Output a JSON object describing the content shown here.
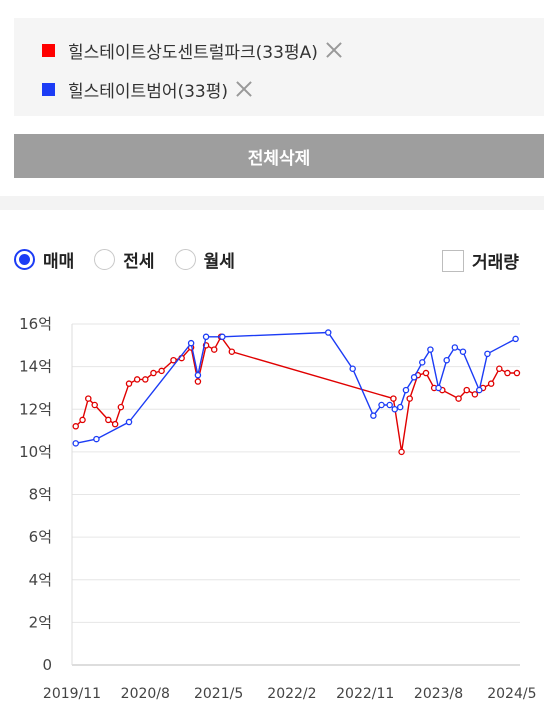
{
  "compare": {
    "items": [
      {
        "label": "힐스테이트상도센트럴파크(33평A)",
        "color": "#ff0000",
        "icon": "close-icon"
      },
      {
        "label": "힐스테이트범어(33평)",
        "color": "#1c3cf5",
        "icon": "close-icon"
      }
    ],
    "delete_all_label": "전체삭제"
  },
  "filters": {
    "options": [
      {
        "label": "매매",
        "selected": true
      },
      {
        "label": "전세",
        "selected": false
      },
      {
        "label": "월세",
        "selected": false
      }
    ],
    "volume_label": "거래량",
    "volume_checked": false
  },
  "chart_data": {
    "type": "line",
    "x_tick_labels": [
      "2019/11",
      "2020/8",
      "2021/5",
      "2022/2",
      "2022/11",
      "2023/8",
      "2024/5"
    ],
    "y_tick_labels": [
      "0",
      "2억",
      "4억",
      "6억",
      "8억",
      "10억",
      "12억",
      "14억",
      "16억"
    ],
    "ylim": [
      0,
      16
    ],
    "xlim": [
      "2019-11",
      "2024-06"
    ],
    "grid": true,
    "series": [
      {
        "name": "힐스테이트상도센트럴파크(33평A)",
        "color": "#e00000",
        "points": [
          [
            "2019-11-15",
            11.2
          ],
          [
            "2019-12-10",
            11.5
          ],
          [
            "2020-01-01",
            12.5
          ],
          [
            "2020-01-25",
            12.2
          ],
          [
            "2020-03-15",
            11.5
          ],
          [
            "2020-04-10",
            11.3
          ],
          [
            "2020-05-01",
            12.1
          ],
          [
            "2020-06-01",
            13.2
          ],
          [
            "2020-07-01",
            13.4
          ],
          [
            "2020-08-01",
            13.4
          ],
          [
            "2020-09-01",
            13.7
          ],
          [
            "2020-10-01",
            13.8
          ],
          [
            "2020-11-15",
            14.3
          ],
          [
            "2020-12-15",
            14.4
          ],
          [
            "2021-01-20",
            14.9
          ],
          [
            "2021-02-15",
            13.3
          ],
          [
            "2021-03-15",
            15.0
          ],
          [
            "2021-04-15",
            14.8
          ],
          [
            "2021-05-10",
            15.4
          ],
          [
            "2021-06-20",
            14.7
          ],
          [
            "2023-02-15",
            12.5
          ],
          [
            "2023-03-15",
            10.0
          ],
          [
            "2023-04-15",
            12.5
          ],
          [
            "2023-05-15",
            13.6
          ],
          [
            "2023-06-15",
            13.7
          ],
          [
            "2023-07-15",
            13.0
          ],
          [
            "2023-08-15",
            12.9
          ],
          [
            "2023-10-15",
            12.5
          ],
          [
            "2023-11-15",
            12.9
          ],
          [
            "2023-12-15",
            12.7
          ],
          [
            "2024-01-15",
            13.0
          ],
          [
            "2024-02-15",
            13.2
          ],
          [
            "2024-03-15",
            13.9
          ],
          [
            "2024-04-15",
            13.7
          ],
          [
            "2024-05-20",
            13.7
          ]
        ]
      },
      {
        "name": "힐스테이트범어(33평)",
        "color": "#1c3cf5",
        "points": [
          [
            "2019-11-15",
            10.4
          ],
          [
            "2020-02-01",
            10.6
          ],
          [
            "2020-06-01",
            11.4
          ],
          [
            "2021-01-20",
            15.1
          ],
          [
            "2021-02-15",
            13.6
          ],
          [
            "2021-03-15",
            15.4
          ],
          [
            "2021-05-15",
            15.4
          ],
          [
            "2022-06-15",
            15.6
          ],
          [
            "2022-09-15",
            13.9
          ],
          [
            "2022-12-01",
            11.7
          ],
          [
            "2023-01-01",
            12.2
          ],
          [
            "2023-02-01",
            12.2
          ],
          [
            "2023-02-20",
            12.0
          ],
          [
            "2023-03-10",
            12.1
          ],
          [
            "2023-04-01",
            12.9
          ],
          [
            "2023-05-01",
            13.5
          ],
          [
            "2023-06-01",
            14.2
          ],
          [
            "2023-07-01",
            14.8
          ],
          [
            "2023-08-01",
            13.0
          ],
          [
            "2023-09-01",
            14.3
          ],
          [
            "2023-10-01",
            14.9
          ],
          [
            "2023-11-01",
            14.7
          ],
          [
            "2024-01-01",
            12.9
          ],
          [
            "2024-02-01",
            14.6
          ],
          [
            "2024-05-15",
            15.3
          ]
        ]
      }
    ]
  }
}
